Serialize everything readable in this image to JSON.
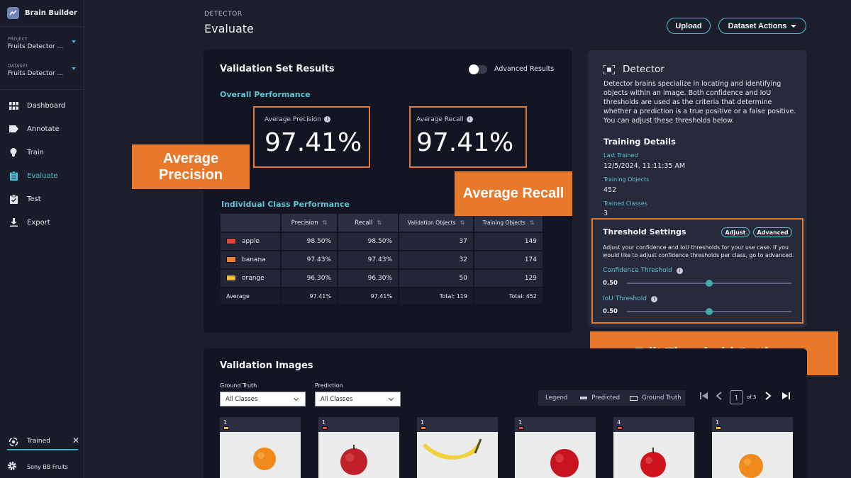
{
  "app": {
    "name": "Brain Builder"
  },
  "sidebar": {
    "project": {
      "caption": "PROJECT",
      "value": "Fruits Detector ..."
    },
    "dataset": {
      "caption": "DATASET",
      "value": "Fruits Detector ..."
    },
    "nav": [
      {
        "label": "Dashboard",
        "icon": "dashboard-icon"
      },
      {
        "label": "Annotate",
        "icon": "tag-icon"
      },
      {
        "label": "Train",
        "icon": "bulb-icon"
      },
      {
        "label": "Evaluate",
        "icon": "clipboard-icon",
        "active": true
      },
      {
        "label": "Test",
        "icon": "clipboard-check-icon"
      },
      {
        "label": "Export",
        "icon": "download-icon"
      }
    ],
    "status": {
      "label": "Trained",
      "close": "✕"
    },
    "org": {
      "label": "Sony BB Fruits"
    }
  },
  "header": {
    "eyebrow": "DETECTOR",
    "title": "Evaluate",
    "upload_label": "Upload",
    "dataset_actions_label": "Dataset Actions"
  },
  "results": {
    "title": "Validation Set Results",
    "advanced_toggle_label": "Advanced Results",
    "advanced_enabled": false,
    "overall_title": "Overall Performance",
    "avg_precision_label": "Average Precision",
    "avg_precision_value": "97.41%",
    "avg_recall_label": "Average Recall",
    "avg_recall_value": "97.41%",
    "class_title": "Individual Class Performance",
    "columns": [
      "",
      "Precision",
      "Recall",
      "Validation Objects",
      "Training Objects"
    ],
    "rows": [
      {
        "name": "apple",
        "color": "#e0463a",
        "precision": "98.50%",
        "recall": "98.50%",
        "val": "37",
        "train": "149"
      },
      {
        "name": "banana",
        "color": "#ef7d2a",
        "precision": "97.43%",
        "recall": "97.43%",
        "val": "32",
        "train": "174"
      },
      {
        "name": "orange",
        "color": "#f2be35",
        "precision": "96.30%",
        "recall": "96.30%",
        "val": "50",
        "train": "129"
      }
    ],
    "average_row": {
      "name": "Average",
      "precision": "97.41%",
      "recall": "97.41%",
      "val": "Total: 119",
      "train": "Total: 452"
    }
  },
  "callouts": {
    "precision": "Average Precision",
    "recall": "Average Recall",
    "threshold": "Edit Threshold Settings"
  },
  "detector": {
    "title": "Detector",
    "description": "Detector brains specialize in locating and identifying objects within an image. Both confidence and IoU thresholds are used as the criteria that determine whether a prediction is a true positive or a false positive. You can adjust these thresholds below.",
    "training_details_title": "Training Details",
    "last_trained_label": "Last Trained",
    "last_trained_value": "12/5/2024, 11:11:35 AM",
    "training_objects_label": "Training Objects",
    "training_objects_value": "452",
    "trained_classes_label": "Trained Classes",
    "trained_classes_value": "3"
  },
  "threshold": {
    "title": "Threshold Settings",
    "adjust_label": "Adjust",
    "advanced_label": "Advanced",
    "description": "Adjust your confidence and IoU thresholds for your use case. If you would like to adjust confidence thresholds per class, go to advanced.",
    "confidence_label": "Confidence Threshold",
    "confidence_value": "0.50",
    "confidence_level": 0.5,
    "iou_label": "IoU Threshold",
    "iou_value": "0.50",
    "iou_level": 0.5
  },
  "validation_images": {
    "title": "Validation Images",
    "ground_truth_label": "Ground Truth",
    "ground_truth_value": "All Classes",
    "prediction_label": "Prediction",
    "prediction_value": "All Classes",
    "legend_label": "Legend",
    "legend_predicted": "Predicted",
    "legend_ground_truth": "Ground Truth",
    "page_current": "1",
    "page_total": "of 5",
    "thumbs": [
      {
        "count": "1",
        "color": "#f2be35",
        "fruit": "orange"
      },
      {
        "count": "1",
        "color": "#e0463a",
        "fruit": "apple"
      },
      {
        "count": "1",
        "color": "#ef7d2a",
        "fruit": "banana"
      },
      {
        "count": "1",
        "color": "#e0463a",
        "fruit": "apple"
      },
      {
        "count": "4",
        "color": "#e0463a",
        "fruit": "apple"
      },
      {
        "count": "1",
        "color": "#f2be35",
        "fruit": "orange"
      }
    ]
  },
  "colors": {
    "accent": "#48c4d6",
    "highlight": "#e8782a",
    "active_nav": "#45c3d8"
  }
}
